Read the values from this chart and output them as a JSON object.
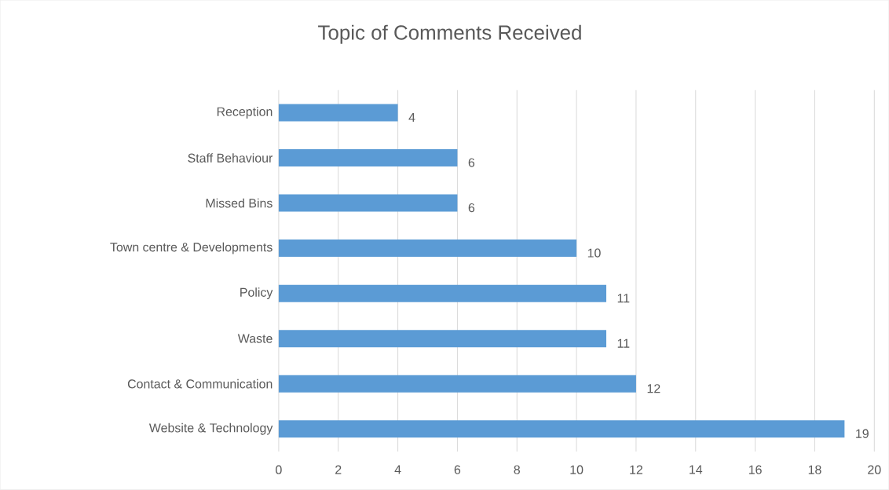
{
  "chart_data": {
    "type": "bar",
    "orientation": "horizontal",
    "title": "Topic of Comments Received",
    "categories": [
      "Reception",
      "Staff Behaviour",
      "Missed Bins",
      "Town centre & Developments",
      "Policy",
      "Waste",
      "Contact & Communication",
      "Website & Technology"
    ],
    "values": [
      4,
      6,
      6,
      10,
      11,
      11,
      12,
      19
    ],
    "color": "#5b9bd5",
    "xlim": [
      0,
      20
    ],
    "xticks": [
      0,
      2,
      4,
      6,
      8,
      10,
      12,
      14,
      16,
      18,
      20
    ],
    "grid": "x",
    "data_labels": true
  }
}
